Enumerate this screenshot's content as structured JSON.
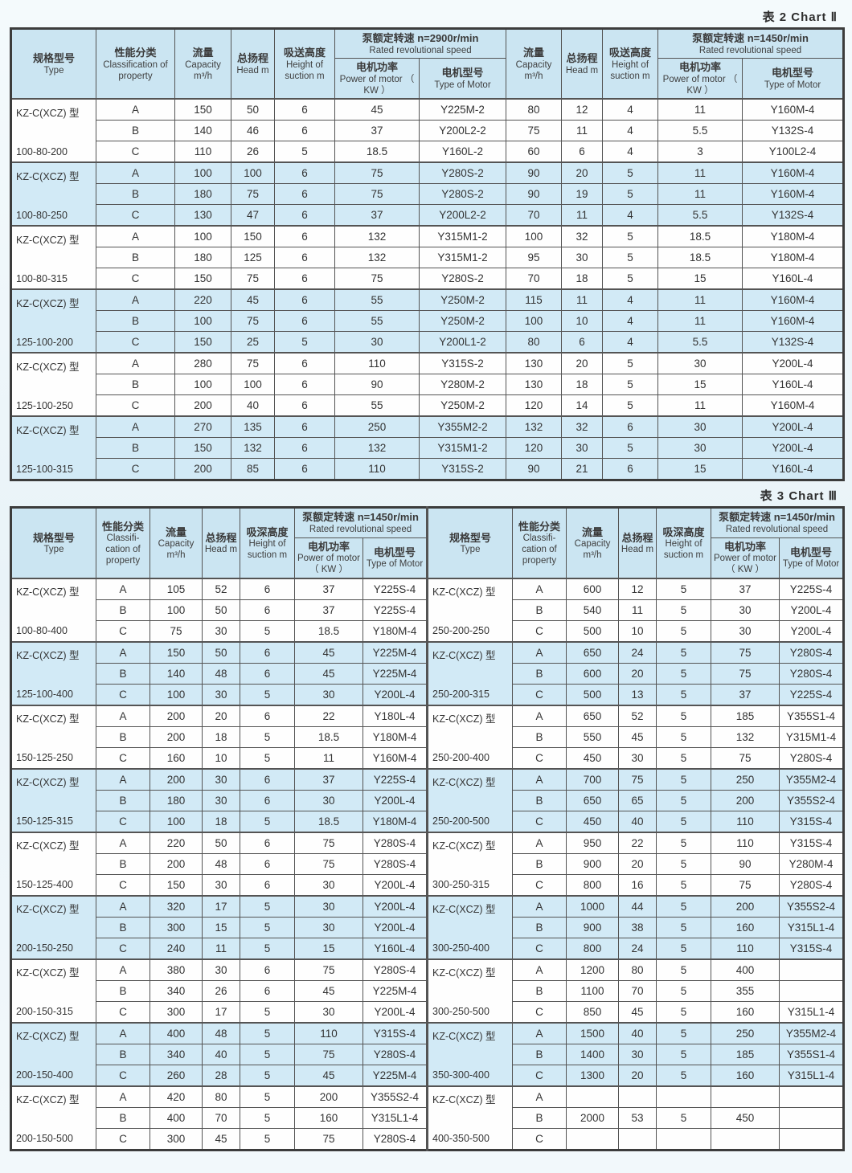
{
  "titles": {
    "chart2": "表 2  Chart Ⅱ",
    "chart3": "表 3  Chart Ⅲ"
  },
  "colors": {
    "header_bg": "#cbe5f2",
    "row_blue": "#d2eaf6",
    "row_white": "#fefefe",
    "border": "#545454",
    "page_bg": "#edf5f9"
  },
  "chart2": {
    "header": {
      "type": {
        "zh": "规格型号",
        "en": "Type"
      },
      "classification": {
        "zh": "性能分类",
        "en": "Classification of property"
      },
      "capacity": {
        "zh": "流量",
        "en": "Capacity m³/h"
      },
      "head": {
        "zh": "总扬程",
        "en": "Head m"
      },
      "suction": {
        "zh": "吸送高度",
        "en": "Height of suction m"
      },
      "speed_2900": {
        "zh": "泵额定转速 n=2900r/min",
        "en": "Rated revolutional speed"
      },
      "speed_1450": {
        "zh": "泵额定转速 n=1450r/min",
        "en": "Rated revolutional speed"
      },
      "power": {
        "zh": "电机功率",
        "en": "Power of motor （ KW ）"
      },
      "motor": {
        "zh": "电机型号",
        "en": "Type of Motor"
      }
    },
    "groups": [
      {
        "model": "KZ-C(XCZ) 型",
        "size": "100-80-200",
        "rows": [
          [
            "A",
            "150",
            "50",
            "6",
            "45",
            "Y225M-2",
            "80",
            "12",
            "4",
            "11",
            "Y160M-4"
          ],
          [
            "B",
            "140",
            "46",
            "6",
            "37",
            "Y200L2-2",
            "75",
            "11",
            "4",
            "5.5",
            "Y132S-4"
          ],
          [
            "C",
            "110",
            "26",
            "5",
            "18.5",
            "Y160L-2",
            "60",
            "6",
            "4",
            "3",
            "Y100L2-4"
          ]
        ]
      },
      {
        "model": "KZ-C(XCZ) 型",
        "size": "100-80-250",
        "rows": [
          [
            "A",
            "100",
            "100",
            "6",
            "75",
            "Y280S-2",
            "90",
            "20",
            "5",
            "11",
            "Y160M-4"
          ],
          [
            "B",
            "180",
            "75",
            "6",
            "75",
            "Y280S-2",
            "90",
            "19",
            "5",
            "11",
            "Y160M-4"
          ],
          [
            "C",
            "130",
            "47",
            "6",
            "37",
            "Y200L2-2",
            "70",
            "11",
            "4",
            "5.5",
            "Y132S-4"
          ]
        ]
      },
      {
        "model": "KZ-C(XCZ) 型",
        "size": "100-80-315",
        "rows": [
          [
            "A",
            "100",
            "150",
            "6",
            "132",
            "Y315M1-2",
            "100",
            "32",
            "5",
            "18.5",
            "Y180M-4"
          ],
          [
            "B",
            "180",
            "125",
            "6",
            "132",
            "Y315M1-2",
            "95",
            "30",
            "5",
            "18.5",
            "Y180M-4"
          ],
          [
            "C",
            "150",
            "75",
            "6",
            "75",
            "Y280S-2",
            "70",
            "18",
            "5",
            "15",
            "Y160L-4"
          ]
        ]
      },
      {
        "model": "KZ-C(XCZ) 型",
        "size": "125-100-200",
        "rows": [
          [
            "A",
            "220",
            "45",
            "6",
            "55",
            "Y250M-2",
            "115",
            "11",
            "4",
            "11",
            "Y160M-4"
          ],
          [
            "B",
            "100",
            "75",
            "6",
            "55",
            "Y250M-2",
            "100",
            "10",
            "4",
            "11",
            "Y160M-4"
          ],
          [
            "C",
            "150",
            "25",
            "5",
            "30",
            "Y200L1-2",
            "80",
            "6",
            "4",
            "5.5",
            "Y132S-4"
          ]
        ]
      },
      {
        "model": "KZ-C(XCZ) 型",
        "size": "125-100-250",
        "rows": [
          [
            "A",
            "280",
            "75",
            "6",
            "110",
            "Y315S-2",
            "130",
            "20",
            "5",
            "30",
            "Y200L-4"
          ],
          [
            "B",
            "100",
            "100",
            "6",
            "90",
            "Y280M-2",
            "130",
            "18",
            "5",
            "15",
            "Y160L-4"
          ],
          [
            "C",
            "200",
            "40",
            "6",
            "55",
            "Y250M-2",
            "120",
            "14",
            "5",
            "11",
            "Y160M-4"
          ]
        ]
      },
      {
        "model": "KZ-C(XCZ) 型",
        "size": "125-100-315",
        "rows": [
          [
            "A",
            "270",
            "135",
            "6",
            "250",
            "Y355M2-2",
            "132",
            "32",
            "6",
            "30",
            "Y200L-4"
          ],
          [
            "B",
            "150",
            "132",
            "6",
            "132",
            "Y315M1-2",
            "120",
            "30",
            "5",
            "30",
            "Y200L-4"
          ],
          [
            "C",
            "200",
            "85",
            "6",
            "110",
            "Y315S-2",
            "90",
            "21",
            "6",
            "15",
            "Y160L-4"
          ]
        ]
      }
    ]
  },
  "chart3": {
    "header": {
      "type": {
        "zh": "规格型号",
        "en": "Type"
      },
      "classification": {
        "zh": "性能分类",
        "en": "Classifi- cation of property"
      },
      "capacity": {
        "zh": "流量",
        "en": "Capacity m³/h"
      },
      "head": {
        "zh": "总扬程",
        "en": "Head m"
      },
      "suction": {
        "zh": "吸深高度",
        "en": "Height of suction m"
      },
      "speed_1450": {
        "zh": "泵额定转速 n=1450r/min",
        "en": "Rated revolutional speed"
      },
      "power": {
        "zh": "电机功率",
        "en": "Power of motor （ KW ）"
      },
      "motor": {
        "zh": "电机型号",
        "en": "Type of Motor"
      }
    },
    "left_groups": [
      {
        "model": "KZ-C(XCZ) 型",
        "size": "100-80-400",
        "rows": [
          [
            "A",
            "105",
            "52",
            "6",
            "37",
            "Y225S-4"
          ],
          [
            "B",
            "100",
            "50",
            "6",
            "37",
            "Y225S-4"
          ],
          [
            "C",
            "75",
            "30",
            "5",
            "18.5",
            "Y180M-4"
          ]
        ]
      },
      {
        "model": "KZ-C(XCZ) 型",
        "size": "125-100-400",
        "rows": [
          [
            "A",
            "150",
            "50",
            "6",
            "45",
            "Y225M-4"
          ],
          [
            "B",
            "140",
            "48",
            "6",
            "45",
            "Y225M-4"
          ],
          [
            "C",
            "100",
            "30",
            "5",
            "30",
            "Y200L-4"
          ]
        ]
      },
      {
        "model": "KZ-C(XCZ) 型",
        "size": "150-125-250",
        "rows": [
          [
            "A",
            "200",
            "20",
            "6",
            "22",
            "Y180L-4"
          ],
          [
            "B",
            "200",
            "18",
            "5",
            "18.5",
            "Y180M-4"
          ],
          [
            "C",
            "160",
            "10",
            "5",
            "11",
            "Y160M-4"
          ]
        ]
      },
      {
        "model": "KZ-C(XCZ) 型",
        "size": "150-125-315",
        "rows": [
          [
            "A",
            "200",
            "30",
            "6",
            "37",
            "Y225S-4"
          ],
          [
            "B",
            "180",
            "30",
            "6",
            "30",
            "Y200L-4"
          ],
          [
            "C",
            "100",
            "18",
            "5",
            "18.5",
            "Y180M-4"
          ]
        ]
      },
      {
        "model": "KZ-C(XCZ) 型",
        "size": "150-125-400",
        "rows": [
          [
            "A",
            "220",
            "50",
            "6",
            "75",
            "Y280S-4"
          ],
          [
            "B",
            "200",
            "48",
            "6",
            "75",
            "Y280S-4"
          ],
          [
            "C",
            "150",
            "30",
            "6",
            "30",
            "Y200L-4"
          ]
        ]
      },
      {
        "model": "KZ-C(XCZ) 型",
        "size": "200-150-250",
        "rows": [
          [
            "A",
            "320",
            "17",
            "5",
            "30",
            "Y200L-4"
          ],
          [
            "B",
            "300",
            "15",
            "5",
            "30",
            "Y200L-4"
          ],
          [
            "C",
            "240",
            "11",
            "5",
            "15",
            "Y160L-4"
          ]
        ]
      },
      {
        "model": "KZ-C(XCZ) 型",
        "size": "200-150-315",
        "rows": [
          [
            "A",
            "380",
            "30",
            "6",
            "75",
            "Y280S-4"
          ],
          [
            "B",
            "340",
            "26",
            "6",
            "45",
            "Y225M-4"
          ],
          [
            "C",
            "300",
            "17",
            "5",
            "30",
            "Y200L-4"
          ]
        ]
      },
      {
        "model": "KZ-C(XCZ) 型",
        "size": "200-150-400",
        "rows": [
          [
            "A",
            "400",
            "48",
            "5",
            "110",
            "Y315S-4"
          ],
          [
            "B",
            "340",
            "40",
            "5",
            "75",
            "Y280S-4"
          ],
          [
            "C",
            "260",
            "28",
            "5",
            "45",
            "Y225M-4"
          ]
        ]
      },
      {
        "model": "KZ-C(XCZ) 型",
        "size": "200-150-500",
        "rows": [
          [
            "A",
            "420",
            "80",
            "5",
            "200",
            "Y355S2-4"
          ],
          [
            "B",
            "400",
            "70",
            "5",
            "160",
            "Y315L1-4"
          ],
          [
            "C",
            "300",
            "45",
            "5",
            "75",
            "Y280S-4"
          ]
        ]
      }
    ],
    "right_groups": [
      {
        "model": "KZ-C(XCZ) 型",
        "size": "250-200-250",
        "rows": [
          [
            "A",
            "600",
            "12",
            "5",
            "37",
            "Y225S-4"
          ],
          [
            "B",
            "540",
            "11",
            "5",
            "30",
            "Y200L-4"
          ],
          [
            "C",
            "500",
            "10",
            "5",
            "30",
            "Y200L-4"
          ]
        ]
      },
      {
        "model": "KZ-C(XCZ) 型",
        "size": "250-200-315",
        "rows": [
          [
            "A",
            "650",
            "24",
            "5",
            "75",
            "Y280S-4"
          ],
          [
            "B",
            "600",
            "20",
            "5",
            "75",
            "Y280S-4"
          ],
          [
            "C",
            "500",
            "13",
            "5",
            "37",
            "Y225S-4"
          ]
        ]
      },
      {
        "model": "KZ-C(XCZ) 型",
        "size": "250-200-400",
        "rows": [
          [
            "A",
            "650",
            "52",
            "5",
            "185",
            "Y355S1-4"
          ],
          [
            "B",
            "550",
            "45",
            "5",
            "132",
            "Y315M1-4"
          ],
          [
            "C",
            "450",
            "30",
            "5",
            "75",
            "Y280S-4"
          ]
        ]
      },
      {
        "model": "KZ-C(XCZ) 型",
        "size": "250-200-500",
        "rows": [
          [
            "A",
            "700",
            "75",
            "5",
            "250",
            "Y355M2-4"
          ],
          [
            "B",
            "650",
            "65",
            "5",
            "200",
            "Y355S2-4"
          ],
          [
            "C",
            "450",
            "40",
            "5",
            "110",
            "Y315S-4"
          ]
        ]
      },
      {
        "model": "KZ-C(XCZ) 型",
        "size": "300-250-315",
        "rows": [
          [
            "A",
            "950",
            "22",
            "5",
            "110",
            "Y315S-4"
          ],
          [
            "B",
            "900",
            "20",
            "5",
            "90",
            "Y280M-4"
          ],
          [
            "C",
            "800",
            "16",
            "5",
            "75",
            "Y280S-4"
          ]
        ]
      },
      {
        "model": "KZ-C(XCZ) 型",
        "size": "300-250-400",
        "rows": [
          [
            "A",
            "1000",
            "44",
            "5",
            "200",
            "Y355S2-4"
          ],
          [
            "B",
            "900",
            "38",
            "5",
            "160",
            "Y315L1-4"
          ],
          [
            "C",
            "800",
            "24",
            "5",
            "110",
            "Y315S-4"
          ]
        ]
      },
      {
        "model": "KZ-C(XCZ) 型",
        "size": "300-250-500",
        "rows": [
          [
            "A",
            "1200",
            "80",
            "5",
            "400",
            ""
          ],
          [
            "B",
            "1100",
            "70",
            "5",
            "355",
            ""
          ],
          [
            "C",
            "850",
            "45",
            "5",
            "160",
            "Y315L1-4"
          ]
        ]
      },
      {
        "model": "KZ-C(XCZ) 型",
        "size": "350-300-400",
        "rows": [
          [
            "A",
            "1500",
            "40",
            "5",
            "250",
            "Y355M2-4"
          ],
          [
            "B",
            "1400",
            "30",
            "5",
            "185",
            "Y355S1-4"
          ],
          [
            "C",
            "1300",
            "20",
            "5",
            "160",
            "Y315L1-4"
          ]
        ]
      },
      {
        "model": "KZ-C(XCZ) 型",
        "size": "400-350-500",
        "rows": [
          [
            "A",
            "",
            "",
            "",
            "",
            ""
          ],
          [
            "B",
            "2000",
            "53",
            "5",
            "450",
            ""
          ],
          [
            "C",
            "",
            "",
            "",
            "",
            ""
          ]
        ]
      }
    ]
  }
}
